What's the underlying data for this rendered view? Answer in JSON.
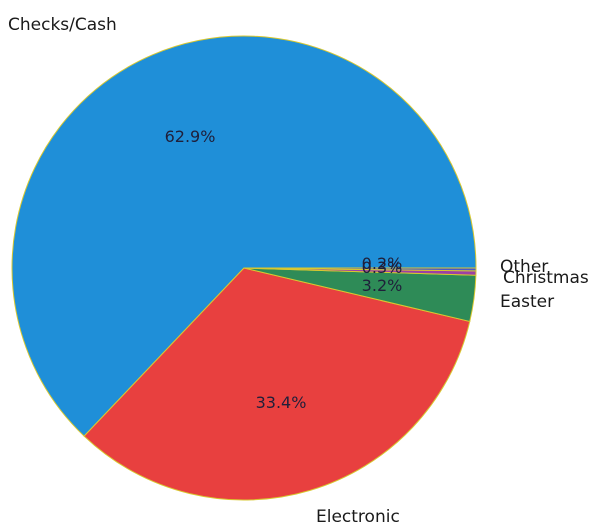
{
  "chart_data": {
    "type": "pie",
    "start_angle_deg": 0,
    "direction": "clockwise-from-top",
    "slices": [
      {
        "label": "Checks/Cash",
        "value": 62.9,
        "pct_label": "62.9%",
        "color": "#1f8fd8"
      },
      {
        "label": "Electronic",
        "value": 33.4,
        "pct_label": "33.4%",
        "color": "#e8403f"
      },
      {
        "label": "Easter",
        "value": 3.2,
        "pct_label": "3.2%",
        "color": "#2e8b57"
      },
      {
        "label": "Christmas",
        "value": 0.3,
        "pct_label": "0.3%",
        "color": "#9b3fa6"
      },
      {
        "label": "Other",
        "value": 0.2,
        "pct_label": "0.2%",
        "color": "#4a58c8"
      }
    ]
  }
}
